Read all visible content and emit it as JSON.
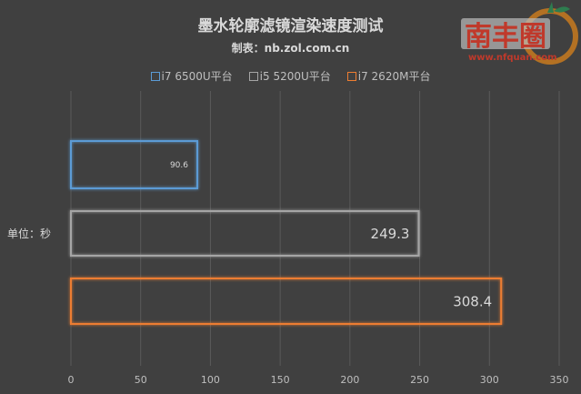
{
  "chart_data": {
    "type": "bar",
    "orientation": "horizontal",
    "title": "墨水轮廓滤镜渲染速度测试",
    "subtitle": "制表：nb.zol.com.cn",
    "ylabel": "单位：秒",
    "xlabel": "",
    "xlim": [
      0,
      350
    ],
    "xticks": [
      0,
      50,
      100,
      150,
      200,
      250,
      300,
      350
    ],
    "grid": true,
    "legend_position": "top",
    "bar_style": "outline",
    "series": [
      {
        "name": "i7 6500U平台",
        "value": 90.6,
        "color": "#5b9bd5"
      },
      {
        "name": "i5 5200U平台",
        "value": 249.3,
        "color": "#a5a5a5"
      },
      {
        "name": "i7 2620M平台",
        "value": 308.4,
        "color": "#ed7d31"
      }
    ]
  },
  "watermark": {
    "text": "南丰圈",
    "url_text": "www.nfquan.com"
  }
}
